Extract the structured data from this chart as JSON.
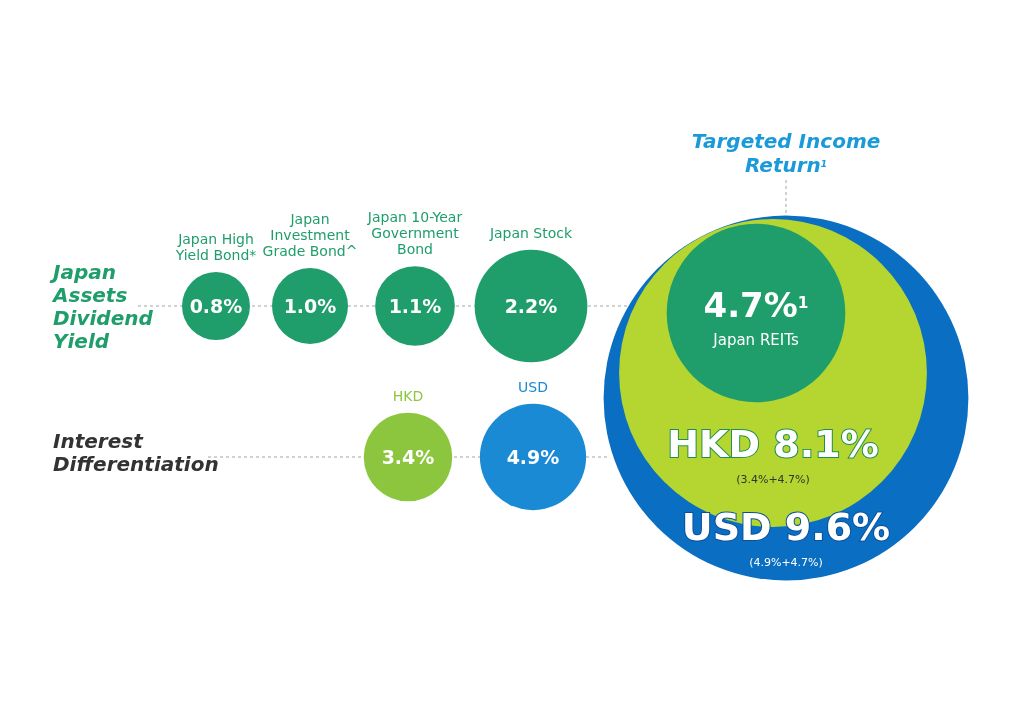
{
  "chart_data": {
    "type": "other",
    "title": "Targeted Income Return$^{1}$",
    "categories": [
      "Japan High Yield Bond*",
      "Japan Investment Grade Bond^",
      "Japan 10-Year Government Bond",
      "Japan Stock",
      "HKD",
      "USD",
      "Japan REITs",
      "HKD",
      "USD"
    ],
    "values": [
      0.8,
      1.0,
      1.1,
      2.2,
      3.4,
      4.9,
      4.7,
      8.1,
      9.6
    ],
    "value_labels": [
      "0.8%",
      "1.0%",
      "1.1%",
      "2.2%",
      "3.4%",
      "4.9%",
      "4.7%$^{1}$",
      "8.1%",
      "9.6%"
    ],
    "colors": [
      "#1f9e6b",
      "#1f9e6b",
      "#1f9e6b",
      "#1f9e6b",
      "#8cc63f",
      "#1a8ad4",
      "#1f9e6b",
      "#b5d630",
      "#0a6fc2"
    ],
    "annotations": [
      "Japan Assets Dividend Yield",
      "Interest Differentiation",
      "(3.4%+4.7%)",
      "(4.9%+4.7%)"
    ]
  }
}
